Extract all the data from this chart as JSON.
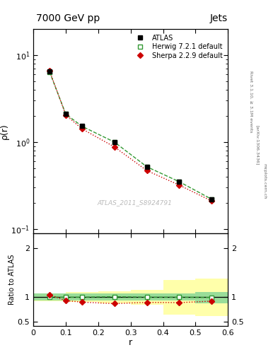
{
  "title_left": "7000 GeV pp",
  "title_right": "Jets",
  "ylabel_main": "ρ(r)",
  "ylabel_ratio": "Ratio to ATLAS",
  "xlabel": "r",
  "watermark": "ATLAS_2011_S8924791",
  "rivet_label": "Rivet 3.1.10, ≥ 3.1M events",
  "arxiv_label": "[arXiv:1306.3436]",
  "mcplots_label": "mcplots.cern.ch",
  "atlas_x": [
    0.05,
    0.1,
    0.15,
    0.25,
    0.35,
    0.45,
    0.55
  ],
  "atlas_y": [
    6.5,
    2.1,
    1.55,
    1.0,
    0.52,
    0.35,
    0.22
  ],
  "herwig_x": [
    0.05,
    0.1,
    0.15,
    0.25,
    0.35,
    0.45,
    0.55
  ],
  "herwig_y": [
    6.4,
    2.1,
    1.52,
    1.0,
    0.52,
    0.35,
    0.22
  ],
  "sherpa_x": [
    0.05,
    0.1,
    0.15,
    0.25,
    0.35,
    0.45,
    0.55
  ],
  "sherpa_y": [
    6.6,
    2.05,
    1.42,
    0.88,
    0.47,
    0.32,
    0.21
  ],
  "herwig_ratio_x": [
    0.05,
    0.1,
    0.15,
    0.25,
    0.35,
    0.45,
    0.55
  ],
  "herwig_ratio_y": [
    1.0,
    1.0,
    1.0,
    1.01,
    1.0,
    1.0,
    0.995
  ],
  "sherpa_ratio_x": [
    0.05,
    0.1,
    0.15,
    0.25,
    0.35,
    0.45,
    0.55
  ],
  "sherpa_ratio_y": [
    1.05,
    0.93,
    0.9,
    0.87,
    0.895,
    0.89,
    0.92
  ],
  "herwig_band_steps_x": [
    0.0,
    0.1,
    0.2,
    0.3,
    0.4,
    0.5,
    0.6
  ],
  "herwig_band_steps_low": [
    0.93,
    0.93,
    0.93,
    0.93,
    0.93,
    0.88,
    0.88
  ],
  "herwig_band_steps_high": [
    1.07,
    1.07,
    1.07,
    1.07,
    1.07,
    1.1,
    1.1
  ],
  "yellow_band_steps_x": [
    0.0,
    0.1,
    0.2,
    0.3,
    0.4,
    0.5,
    0.6
  ],
  "yellow_band_steps_low": [
    0.92,
    0.9,
    0.88,
    0.85,
    0.65,
    0.62,
    0.62
  ],
  "yellow_band_steps_high": [
    1.08,
    1.1,
    1.12,
    1.15,
    1.35,
    1.38,
    1.38
  ],
  "atlas_color": "#000000",
  "herwig_color": "#339933",
  "sherpa_color": "#cc0000",
  "herwig_band_color": "#99dd99",
  "yellow_band_color": "#ffffaa",
  "reference_line_color": "#000000",
  "ylim_main": [
    0.09,
    20.0
  ],
  "ylim_ratio": [
    0.42,
    2.3
  ],
  "xlim": [
    0.0,
    0.6
  ],
  "bg_color": "#ffffff"
}
